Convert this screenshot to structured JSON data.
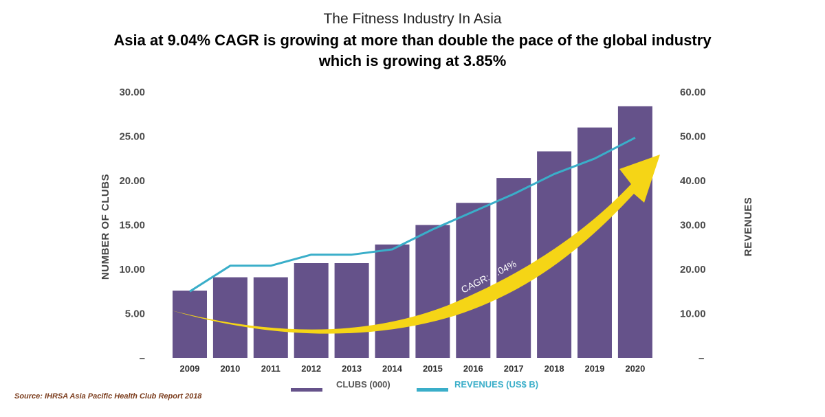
{
  "header": {
    "title": "The Fitness Industry In Asia",
    "subtitle_line1": "Asia at 9.04% CAGR is growing at more than double the pace of the global industry",
    "subtitle_line2": "which is growing at 3.85%"
  },
  "source": "Source: IHRSA Asia Pacific Health Club Report 2018",
  "annotation": {
    "label": "CAGR: 9.04%",
    "color": "#f5d516"
  },
  "chart_data": {
    "type": "bar",
    "categories": [
      "2009",
      "2010",
      "2011",
      "2012",
      "2013",
      "2014",
      "2015",
      "2016",
      "2017",
      "2018",
      "2019",
      "2020"
    ],
    "series": [
      {
        "name": "CLUBS (000)",
        "type": "bar",
        "axis": "left",
        "color": "#65528a",
        "values": [
          7.6,
          9.1,
          9.1,
          10.7,
          10.7,
          12.8,
          15.0,
          17.5,
          20.3,
          23.3,
          26.0,
          28.4
        ]
      },
      {
        "name": "REVENUES (US$ B)",
        "type": "line",
        "axis": "right",
        "color": "#3aaec9",
        "values": [
          15.0,
          20.8,
          20.8,
          23.3,
          23.3,
          24.5,
          29.0,
          33.0,
          37.0,
          41.5,
          45.0,
          49.7
        ]
      }
    ],
    "ylabel": "NUMBER OF CLUBS",
    "ylabel_right": "REVENUES",
    "ylim": [
      0,
      30
    ],
    "ylim_right": [
      0,
      60
    ],
    "yticks": [
      "–",
      "5.00",
      "10.00",
      "15.00",
      "20.00",
      "25.00",
      "30.00"
    ],
    "yticks_right": [
      "–",
      "10.00",
      "20.00",
      "30.00",
      "40.00",
      "50.00",
      "60.00"
    ],
    "grid": false,
    "legend": "bottom"
  }
}
